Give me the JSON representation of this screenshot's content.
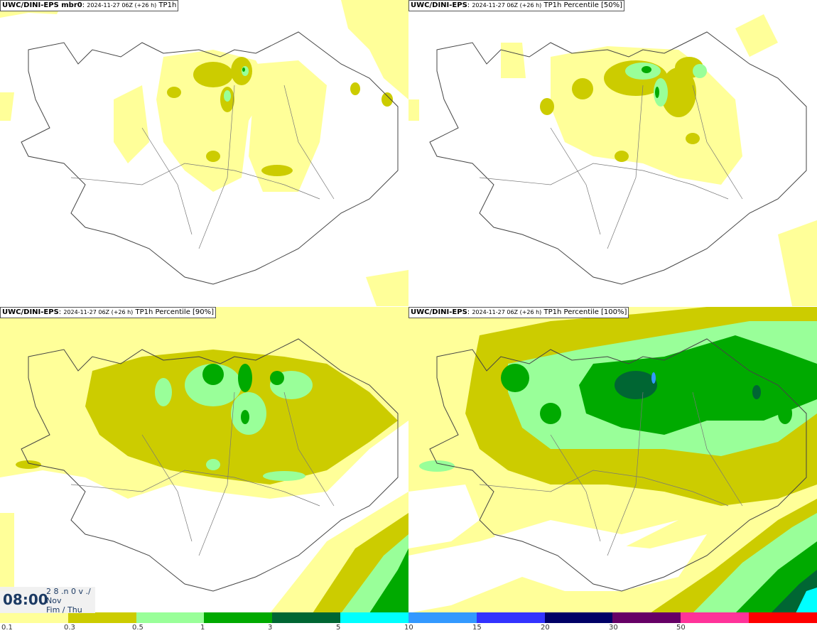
{
  "panels": [
    {
      "title_bold": "UWC/DINI-EPS mbr0",
      "title_date": "2024-11-27 06Z (+26 h)",
      "title_field": "TP1h"
    },
    {
      "title_bold": "UWC/DINI-EPS",
      "title_date": "2024-11-27 06Z (+26 h)",
      "title_field": "TP1h Percentile [50%]"
    },
    {
      "title_bold": "UWC/DINI-EPS",
      "title_date": "2024-11-27 06Z (+26 h)",
      "title_field": "TP1h Percentile [90%]"
    },
    {
      "title_bold": "UWC/DINI-EPS",
      "title_date": "2024-11-27 06Z (+26 h)",
      "title_field": "TP1h Percentile [100%]"
    }
  ],
  "clock": {
    "time": "08:00",
    "date_line1": "2 8 .n 0 v ./",
    "date_line2": "Nov",
    "date_line3": "Fim / Thu"
  },
  "legend": {
    "colors": [
      "#ffff99",
      "#cccc00",
      "#99ff99",
      "#00aa00",
      "#006633",
      "#00ffff",
      "#3399ff",
      "#3333ff",
      "#000066",
      "#660066",
      "#ff3399",
      "#ff0000"
    ],
    "ticks": [
      "0.1",
      "0.3",
      "0.5",
      "1",
      "3",
      "5",
      "10",
      "15",
      "20",
      "30",
      "50"
    ]
  }
}
